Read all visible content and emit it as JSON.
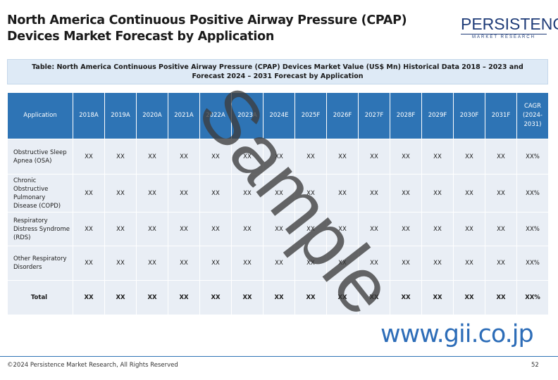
{
  "header": {
    "title": "North America Continuous Positive Airway Pressure (CPAP) Devices Market Forecast by Application",
    "logo": {
      "name": "PERSISTENCE",
      "tagline": "MARKET RESEARCH"
    }
  },
  "table": {
    "caption": "Table: North America Continuous Positive Airway Pressure (CPAP) Devices Market Value (US$ Mn) Historical Data 2018 – 2023 and Forecast 2024 – 2031 Forecast by Application",
    "columns": [
      "Application",
      "2018A",
      "2019A",
      "2020A",
      "2021A",
      "2022A",
      "2023A",
      "2024E",
      "2025F",
      "2026F",
      "2027F",
      "2028F",
      "2029F",
      "2030F",
      "2031F",
      "CAGR (2024-2031)"
    ],
    "rows": [
      [
        "Obstructive Sleep Apnea (OSA)",
        "XX",
        "XX",
        "XX",
        "XX",
        "XX",
        "XX",
        "XX",
        "XX",
        "XX",
        "XX",
        "XX",
        "XX",
        "XX",
        "XX",
        "XX%"
      ],
      [
        "Chronic Obstructive Pulmonary Disease (COPD)",
        "XX",
        "XX",
        "XX",
        "XX",
        "XX",
        "XX",
        "XX",
        "XX",
        "XX",
        "XX",
        "XX",
        "XX",
        "XX",
        "XX",
        "XX%"
      ],
      [
        "Respiratory Distress Syndrome (RDS)",
        "XX",
        "XX",
        "XX",
        "XX",
        "XX",
        "XX",
        "XX",
        "XX",
        "XX",
        "XX",
        "XX",
        "XX",
        "XX",
        "XX",
        "XX%"
      ],
      [
        "Other Respiratory Disorders",
        "XX",
        "XX",
        "XX",
        "XX",
        "XX",
        "XX",
        "XX",
        "XX",
        "XX",
        "XX",
        "XX",
        "XX",
        "XX",
        "XX",
        "XX%"
      ],
      [
        "Total",
        "XX",
        "XX",
        "XX",
        "XX",
        "XX",
        "XX",
        "XX",
        "XX",
        "XX",
        "XX",
        "XX",
        "XX",
        "XX",
        "XX",
        "XX%"
      ]
    ]
  },
  "watermark": "Sample",
  "url": "www.gii.co.jp",
  "footer": {
    "copyright": "©2024 Persistence Market Research, All Rights Reserved",
    "page": "52"
  }
}
